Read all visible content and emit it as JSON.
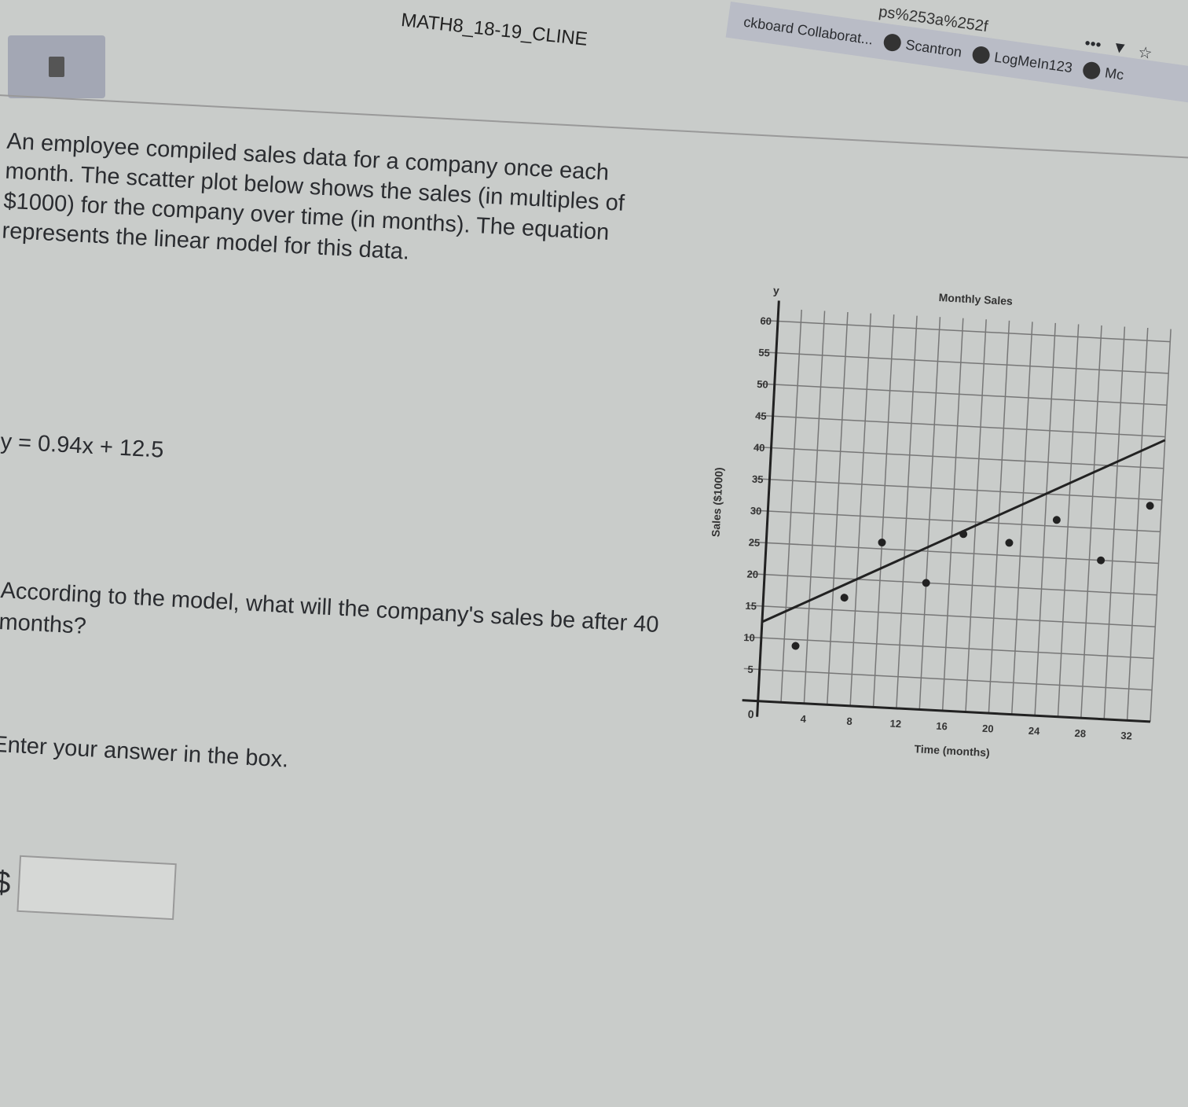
{
  "browser": {
    "url_fragment": "ps%253a%252f",
    "bookmarks": [
      "ckboard Collaborat...",
      "Scantron",
      "LogMeIn123",
      "Mc"
    ],
    "icons": [
      "more-icon",
      "pocket-icon",
      "star-icon"
    ]
  },
  "course_title": "MATH8_18-19_CLINE",
  "toolbar": {
    "calculator_icon": "calculator-icon"
  },
  "question": {
    "text": "An employee compiled sales data for a company once each month. The scatter plot below shows the sales (in multiples of $1000) for the company over time (in months). The equation represents the linear model for this data.",
    "equation": "y = 0.94x + 12.5",
    "prompt": "According to the model, what will the company's sales be after 40 months?",
    "instruction": "Enter your answer in the box.",
    "currency_symbol": "$",
    "answer_value": ""
  },
  "chart_data": {
    "type": "scatter",
    "title": "Monthly Sales",
    "xlabel": "Time (months)",
    "ylabel": "Sales ($1000)",
    "y_axis_letter": "y",
    "origin_label": "0",
    "xlim": [
      0,
      34
    ],
    "ylim": [
      0,
      62
    ],
    "xticks": [
      4,
      8,
      12,
      16,
      20,
      24,
      28,
      32
    ],
    "yticks": [
      5,
      10,
      15,
      20,
      25,
      30,
      35,
      40,
      45,
      50,
      55,
      60
    ],
    "grid": true,
    "points": [
      [
        3,
        9
      ],
      [
        7,
        17
      ],
      [
        10,
        26
      ],
      [
        14,
        20
      ],
      [
        17,
        28
      ],
      [
        21,
        27
      ],
      [
        25,
        31
      ],
      [
        29,
        25
      ],
      [
        33,
        34
      ]
    ],
    "trend_line": {
      "slope": 0.94,
      "intercept": 12.5
    }
  }
}
